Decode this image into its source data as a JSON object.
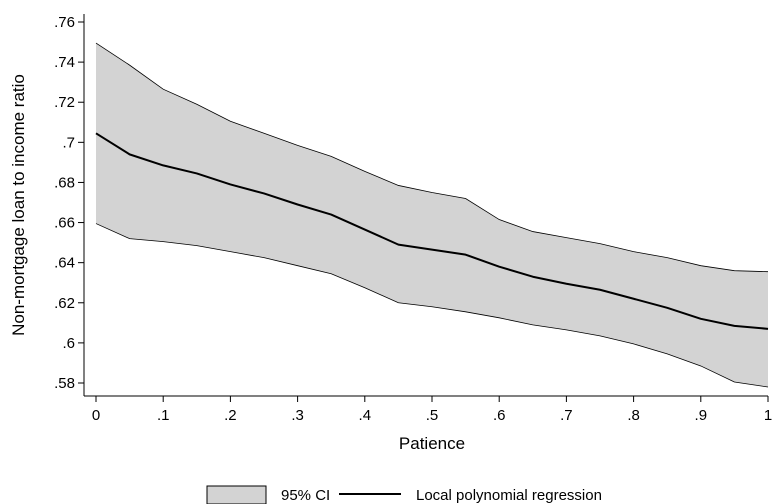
{
  "chart_data": {
    "type": "line",
    "xlabel": "Patience",
    "ylabel": "Non-mortgage loan to income ratio",
    "xlim": [
      0,
      1
    ],
    "ylim": [
      0.575,
      0.765
    ],
    "x_ticks": [
      0,
      0.1,
      0.2,
      0.3,
      0.4,
      0.5,
      0.6,
      0.7,
      0.8,
      0.9,
      1
    ],
    "x_tick_labels": [
      "0",
      ".1",
      ".2",
      ".3",
      ".4",
      ".5",
      ".6",
      ".7",
      ".8",
      ".9",
      "1"
    ],
    "y_ticks": [
      0.58,
      0.6,
      0.62,
      0.64,
      0.66,
      0.68,
      0.7,
      0.72,
      0.74,
      0.76
    ],
    "y_tick_labels": [
      ".58",
      ".6",
      ".62",
      ".64",
      ".66",
      ".68",
      ".7",
      ".72",
      ".74",
      ".76"
    ],
    "x": [
      0,
      0.05,
      0.1,
      0.15,
      0.2,
      0.25,
      0.3,
      0.35,
      0.4,
      0.45,
      0.5,
      0.55,
      0.6,
      0.65,
      0.7,
      0.75,
      0.8,
      0.85,
      0.9,
      0.95,
      1
    ],
    "series": [
      {
        "name": "Local polynomial regression",
        "type": "line",
        "color": "#000000",
        "values": [
          0.7045,
          0.694,
          0.6885,
          0.6845,
          0.679,
          0.6745,
          0.669,
          0.664,
          0.6565,
          0.649,
          0.6465,
          0.644,
          0.638,
          0.633,
          0.6295,
          0.6265,
          0.622,
          0.6175,
          0.612,
          0.6085,
          0.607
        ]
      },
      {
        "name": "95% CI",
        "type": "band",
        "color": "#d3d3d3",
        "lower": [
          0.6595,
          0.652,
          0.6505,
          0.6485,
          0.6455,
          0.6425,
          0.6385,
          0.6345,
          0.6275,
          0.62,
          0.618,
          0.6155,
          0.6125,
          0.609,
          0.6065,
          0.6035,
          0.5995,
          0.5945,
          0.5885,
          0.5805,
          0.578
        ],
        "upper": [
          0.7495,
          0.7385,
          0.7265,
          0.719,
          0.7105,
          0.7045,
          0.6985,
          0.693,
          0.6855,
          0.6785,
          0.675,
          0.672,
          0.6615,
          0.6555,
          0.6525,
          0.6495,
          0.6455,
          0.6425,
          0.6385,
          0.636,
          0.6355
        ]
      }
    ],
    "legend": {
      "position": "bottom",
      "entries": [
        "95% CI",
        "Local polynomial regression"
      ]
    },
    "grid": false
  }
}
